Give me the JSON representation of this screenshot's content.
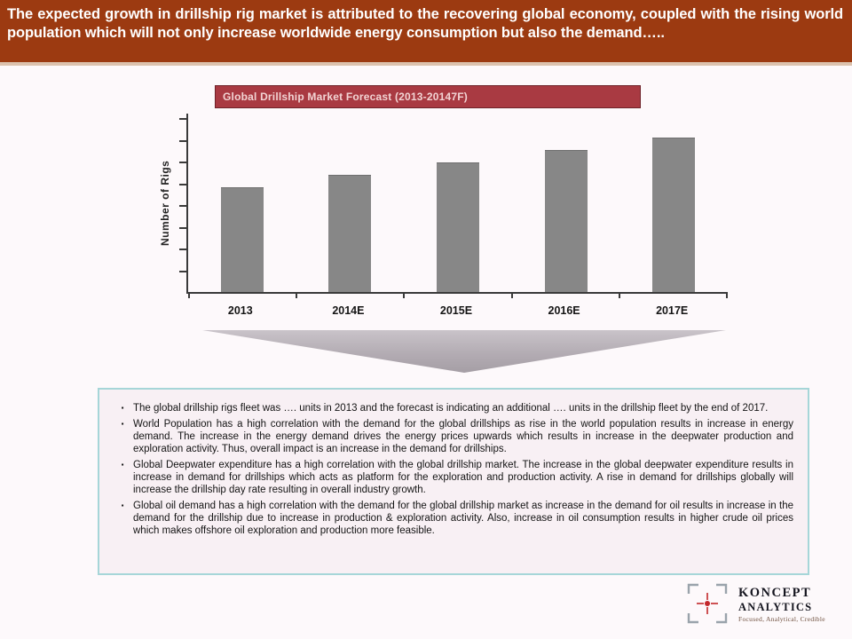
{
  "header": {
    "text": "The expected growth in drillship rig market is attributed to the recovering global economy, coupled with the rising world population which will not only increase worldwide energy consumption but also the demand….."
  },
  "chart": {
    "title": "Global  Drillship Market Forecast (2013-20147F)"
  },
  "chart_data": {
    "type": "bar",
    "title": "Global  Drillship Market Forecast (2013-20147F)",
    "categories": [
      "2013",
      "2014E",
      "2015E",
      "2016E",
      "2017E"
    ],
    "values": [
      58,
      65,
      72,
      79,
      86
    ],
    "values_note": "y-axis has tick marks but no numeric labels; values estimated as percent of plot height",
    "xlabel": "",
    "ylabel": "Number of Rigs",
    "ylim": [
      0,
      100
    ],
    "y_tick_count": 8,
    "x_tick_count": 6,
    "grid": false,
    "legend": false,
    "bar_color": "#878787"
  },
  "bullet_char": "▪",
  "bullets": [
    "The global drillship rigs fleet was …. units in 2013 and the forecast is indicating an additional …. units in the drillship fleet by the end of 2017.",
    "World Population has a high correlation with the demand for the global drillships as rise in the world population results in increase in energy demand. The increase in the energy demand drives the energy prices upwards which results in increase in the deepwater production and exploration activity. Thus, overall impact is an increase in the demand for drillships.",
    "Global Deepwater expenditure has a high correlation with the global drillship market. The increase in the global deepwater expenditure results in increase in demand for drillships which acts as platform for the exploration and production activity. A rise in demand for drillships globally will increase the drillship day rate resulting in overall industry growth.",
    "Global oil demand has a high correlation with the demand for the global drillship market as increase in the demand for oil results in increase in the demand for the drillship due to increase in production & exploration activity. Also, increase in oil consumption results in higher crude oil prices which makes offshore oil exploration and production more feasible."
  ],
  "logo": {
    "line1": "KONCEPT",
    "line2": "ANALYTICS",
    "tagline": "Focused, Analytical, Credible"
  },
  "colors": {
    "header_bg": "#9c3a11",
    "chart_title_bg": "#a93a42",
    "chart_title_border": "#6e2229",
    "bar_gray": "#878787",
    "arrow_gray": "#b3acb3",
    "box_border_teal": "#a6d6d8",
    "box_bg_pink": "#f8f0f4",
    "logo_red": "#c3272b",
    "slide_bg": "#fdf9fb"
  }
}
